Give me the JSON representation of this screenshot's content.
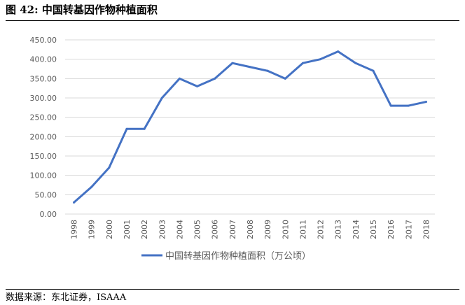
{
  "header": {
    "title": "图 42: 中国转基因作物种植面积"
  },
  "footer": {
    "source": "数据来源：东北证券，ISAAA"
  },
  "chart_data": {
    "type": "line",
    "title": "",
    "xlabel": "",
    "ylabel": "",
    "ylim": [
      0,
      450
    ],
    "y_ticks": [
      "0.00",
      "50.00",
      "100.00",
      "150.00",
      "200.00",
      "250.00",
      "300.00",
      "350.00",
      "400.00",
      "450.00"
    ],
    "grid": true,
    "legend_position": "bottom",
    "x": [
      "1998",
      "1999",
      "2000",
      "2001",
      "2002",
      "2003",
      "2004",
      "2005",
      "2006",
      "2007",
      "2008",
      "2009",
      "2010",
      "2011",
      "2012",
      "2013",
      "2014",
      "2015",
      "2016",
      "2017",
      "2018"
    ],
    "series": [
      {
        "name": "中国转基因作物种植面积（万公顷）",
        "color": "#4472C4",
        "values": [
          30,
          70,
          120,
          220,
          220,
          300,
          350,
          330,
          350,
          390,
          380,
          370,
          350,
          390,
          400,
          420,
          390,
          370,
          280,
          280,
          290
        ]
      }
    ]
  }
}
